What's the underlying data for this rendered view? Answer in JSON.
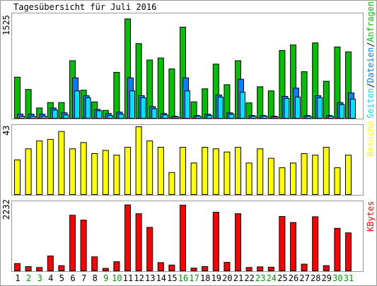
{
  "chart_data": {
    "type": "bar",
    "title": "Tagesübersicht für Juli 2016",
    "categories": [
      "1",
      "2",
      "3",
      "4",
      "5",
      "6",
      "7",
      "8",
      "9",
      "10",
      "11",
      "12",
      "13",
      "14",
      "15",
      "16",
      "17",
      "18",
      "19",
      "20",
      "21",
      "22",
      "23",
      "24",
      "25",
      "26",
      "27",
      "28",
      "29",
      "30",
      "31"
    ],
    "weekend_days": [
      "2",
      "3",
      "9",
      "10",
      "16",
      "17",
      "23",
      "24",
      "30",
      "31"
    ],
    "colors": {
      "border": "#999999",
      "axis_label": "#000000",
      "weekday_label": "#000000",
      "weekend_label": "#009900",
      "pages": "#00c000",
      "files": "#0080ff",
      "hits": "#00e0ff",
      "visits": "#ffff00",
      "kbytes": "#ff0000",
      "bar_stroke": "#000000"
    },
    "panels": [
      {
        "id": "top",
        "max_label": "1525",
        "ylim": [
          0,
          1525
        ],
        "legend": [
          {
            "text": "Seiten",
            "color": "#00e0ff"
          },
          {
            "text": "/",
            "color": "#000000"
          },
          {
            "text": "Dateien",
            "color": "#0080ff"
          },
          {
            "text": "/",
            "color": "#000000"
          },
          {
            "text": "Anfragen",
            "color": "#00c000"
          }
        ],
        "series": [
          {
            "name": "Anfragen",
            "color": "#00c000",
            "values": [
              600,
              420,
              150,
              230,
              230,
              840,
              410,
              240,
              115,
              670,
              1450,
              1090,
              850,
              880,
              720,
              1330,
              240,
              430,
              790,
              490,
              840,
              225,
              460,
              400,
              990,
              1070,
              680,
              1100,
              540,
              1040,
              970
            ]
          },
          {
            "name": "Dateien",
            "color": "#0080ff",
            "values": [
              60,
              60,
              60,
              150,
              80,
              590,
              330,
              130,
              70,
              90,
              590,
              330,
              170,
              70,
              30,
              590,
              40,
              60,
              340,
              80,
              570,
              40,
              40,
              30,
              320,
              440,
              40,
              330,
              40,
              230,
              370
            ]
          },
          {
            "name": "Seiten",
            "color": "#00e0ff",
            "values": [
              30,
              30,
              30,
              120,
              50,
              400,
              300,
              110,
              40,
              60,
              400,
              300,
              140,
              50,
              20,
              400,
              30,
              40,
              310,
              60,
              380,
              30,
              30,
              20,
              290,
              310,
              30,
              300,
              30,
              200,
              280
            ]
          }
        ]
      },
      {
        "id": "middle",
        "max_label": "43",
        "ylim": [
          0,
          43
        ],
        "legend": [
          {
            "text": "Besuche",
            "color": "#ffff00"
          }
        ],
        "series": [
          {
            "name": "Besuche",
            "color": "#ffff00",
            "values": [
              22,
              29,
              34,
              35,
              40,
              29,
              33,
              26,
              28,
              25,
              30,
              43,
              34,
              30,
              14,
              30,
              20,
              30,
              29,
              27,
              30,
              20,
              29,
              23,
              17,
              20,
              26,
              25,
              30,
              17,
              25
            ]
          }
        ]
      },
      {
        "id": "bottom",
        "max_label": "2232",
        "ylim": [
          0,
          2232
        ],
        "legend": [
          {
            "text": "KBytes",
            "color": "#ff0000"
          }
        ],
        "series": [
          {
            "name": "KBytes",
            "color": "#ff0000",
            "values": [
              240,
              140,
              110,
              490,
              170,
              1830,
              1670,
              460,
              80,
              300,
              2170,
              1880,
              1430,
              270,
              190,
              2160,
              90,
              140,
              1930,
              280,
              1880,
              110,
              130,
              120,
              1790,
              1590,
              220,
              1780,
              170,
              1400,
              1250
            ]
          }
        ]
      }
    ]
  }
}
